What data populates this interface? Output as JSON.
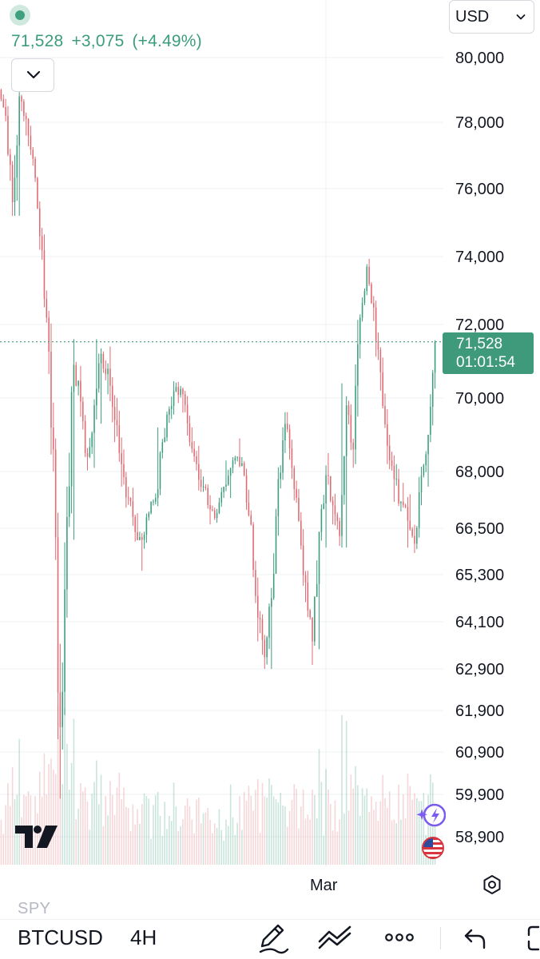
{
  "header": {
    "last_price": "71,528",
    "change": "+3,075",
    "change_pct": "(+4.49%)"
  },
  "currency_select": {
    "value": "USD"
  },
  "price_axis": {
    "ticks": [
      "80,000",
      "78,000",
      "76,000",
      "74,000",
      "72,000",
      "70,000",
      "68,000",
      "66,500",
      "65,300",
      "64,100",
      "62,900",
      "61,900",
      "60,900",
      "59,900",
      "58,900"
    ]
  },
  "current_price_label": {
    "price": "71,528",
    "countdown": "01:01:54"
  },
  "time_axis": {
    "label": "Mar"
  },
  "bottom_bar": {
    "ghost_symbol": "SPY",
    "symbol": "BTCUSD",
    "interval": "4H"
  },
  "colors": {
    "up": "#3c9d7e",
    "down": "#e06a72",
    "accent_green": "#3e9a7b",
    "grid": "#eef0f3"
  },
  "icons": [
    "live-indicator-icon",
    "chevron-down-icon",
    "tradingview-logo",
    "ai-assistant-icon",
    "us-flag-icon",
    "settings-icon",
    "pen-draw-icon",
    "indicators-icon",
    "more-icon",
    "undo-icon",
    "fullscreen-icon"
  ],
  "chart_data": {
    "type": "candlestick",
    "symbol": "BTCUSD",
    "interval": "4H",
    "x_label": "Mar",
    "y_range": [
      58900,
      80000
    ],
    "current_price": 71528,
    "ohlc_approx": [
      [
        79000,
        79100,
        77500,
        78200
      ],
      [
        78200,
        78500,
        74500,
        75600
      ],
      [
        75600,
        79200,
        75200,
        78800
      ],
      [
        78800,
        79300,
        77600,
        78100
      ],
      [
        78100,
        78400,
        76500,
        76900
      ],
      [
        76900,
        77000,
        74200,
        74600
      ],
      [
        74600,
        74900,
        71800,
        72200
      ],
      [
        72200,
        72400,
        68000,
        68600
      ],
      [
        68600,
        68900,
        59800,
        61500
      ],
      [
        61500,
        67600,
        60800,
        66800
      ],
      [
        66800,
        71800,
        66200,
        70900
      ],
      [
        70900,
        71700,
        69000,
        69900
      ],
      [
        69900,
        70500,
        67900,
        68400
      ],
      [
        68400,
        70300,
        68100,
        69800
      ],
      [
        69800,
        71600,
        69300,
        71200
      ],
      [
        71200,
        72200,
        70100,
        70800
      ],
      [
        70800,
        71400,
        68800,
        69400
      ],
      [
        69400,
        70000,
        67600,
        68200
      ],
      [
        68200,
        68600,
        66600,
        67300
      ],
      [
        67300,
        67900,
        65900,
        66400
      ],
      [
        66400,
        66900,
        65400,
        66200
      ],
      [
        66200,
        67200,
        65800,
        66900
      ],
      [
        66900,
        67700,
        66400,
        67300
      ],
      [
        67300,
        69200,
        67000,
        68800
      ],
      [
        68800,
        70200,
        68500,
        69700
      ],
      [
        69700,
        70800,
        69200,
        70300
      ],
      [
        70300,
        70900,
        69600,
        70100
      ],
      [
        70100,
        70300,
        68400,
        68800
      ],
      [
        68800,
        69200,
        67600,
        68200
      ],
      [
        68200,
        68700,
        67000,
        67600
      ],
      [
        67600,
        68100,
        66600,
        67000
      ],
      [
        67000,
        67500,
        66300,
        66900
      ],
      [
        66900,
        67900,
        66500,
        67600
      ],
      [
        67600,
        68300,
        67300,
        68100
      ],
      [
        68100,
        68700,
        67800,
        68400
      ],
      [
        68400,
        68900,
        67600,
        67900
      ],
      [
        67900,
        68200,
        66200,
        66600
      ],
      [
        66600,
        66800,
        63600,
        64200
      ],
      [
        64200,
        65300,
        62600,
        63200
      ],
      [
        63200,
        65000,
        62900,
        64700
      ],
      [
        64700,
        68300,
        64400,
        67800
      ],
      [
        67800,
        69800,
        67300,
        69300
      ],
      [
        69300,
        69700,
        67800,
        68100
      ],
      [
        68100,
        68400,
        66300,
        66700
      ],
      [
        66700,
        67000,
        64600,
        65100
      ],
      [
        65100,
        65400,
        63000,
        63600
      ],
      [
        63600,
        66800,
        63400,
        66400
      ],
      [
        66400,
        68600,
        66000,
        67900
      ],
      [
        67900,
        68500,
        66600,
        67100
      ],
      [
        67100,
        67500,
        65700,
        66300
      ],
      [
        66300,
        70400,
        66000,
        69800
      ],
      [
        69800,
        70100,
        68100,
        68600
      ],
      [
        68600,
        72900,
        68200,
        72200
      ],
      [
        72200,
        74200,
        71700,
        73700
      ],
      [
        73700,
        74000,
        72100,
        72500
      ],
      [
        72500,
        72700,
        70200,
        70700
      ],
      [
        70700,
        71100,
        68200,
        68700
      ],
      [
        68700,
        69000,
        67200,
        67800
      ],
      [
        67800,
        68200,
        66700,
        67200
      ],
      [
        67200,
        67700,
        66000,
        66700
      ],
      [
        66700,
        67400,
        65400,
        66100
      ],
      [
        66100,
        68400,
        65900,
        67900
      ],
      [
        67900,
        69400,
        67600,
        69000
      ],
      [
        69000,
        71700,
        68800,
        71528
      ]
    ]
  }
}
